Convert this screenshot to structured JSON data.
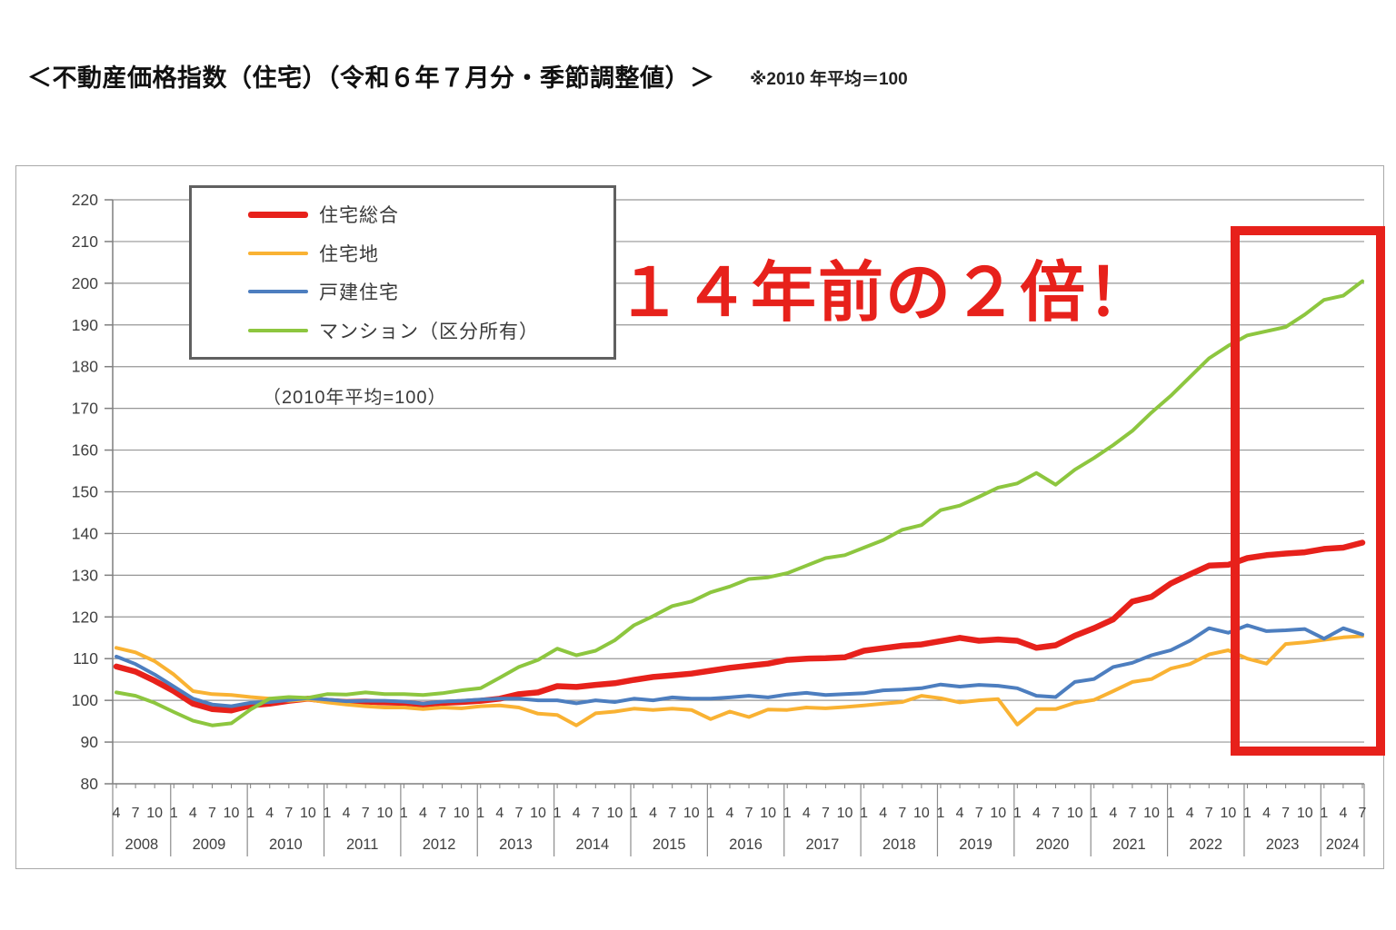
{
  "header": {
    "title": "＜不動産価格指数（住宅）（令和６年７月分・季節調整値）＞",
    "note": "※2010 年平均＝100"
  },
  "legend": {
    "items": [
      {
        "id": "composite",
        "label": "住宅総合",
        "color": "#e7211b",
        "thickness": 7
      },
      {
        "id": "land",
        "label": "住宅地",
        "color": "#f9b233",
        "thickness": 4
      },
      {
        "id": "detached",
        "label": "戸建住宅",
        "color": "#4d7ebf",
        "thickness": 4
      },
      {
        "id": "condo",
        "label": "マンション（区分所有）",
        "color": "#8dc63f",
        "thickness": 4
      }
    ],
    "subcaption": "（2010年平均=100）"
  },
  "annotation": {
    "text": "１４年前の２倍！",
    "color": "#e7211b"
  },
  "highlight_box": {
    "from": "2023-01",
    "to": "2024-07",
    "color": "#e7211b"
  },
  "chart_data": {
    "type": "line",
    "title": "不動産価格指数（住宅）（令和６年７月分・季節調整値）",
    "x_unit": "month",
    "x_start": "2008-04",
    "x_end": "2024-07",
    "ylim": [
      80,
      220
    ],
    "y_step": 10,
    "y_ticks": [
      80,
      90,
      100,
      110,
      120,
      130,
      140,
      150,
      160,
      170,
      180,
      190,
      200,
      210,
      220
    ],
    "x_year_labels": [
      "2008",
      "2009",
      "2010",
      "2011",
      "2012",
      "2013",
      "2014",
      "2015",
      "2016",
      "2017",
      "2018",
      "2019",
      "2020",
      "2021",
      "2022",
      "2023",
      "2024"
    ],
    "x_month_tick_pattern": {
      "2008": [
        4,
        7,
        10
      ],
      "default": [
        1,
        4,
        7,
        10
      ],
      "2024": [
        1,
        4,
        7
      ]
    },
    "grid": true,
    "legend_position": "top-left",
    "grid_color": "#969696",
    "axis_color": "#7f7f7f",
    "label_color": "#3f3f3f",
    "frame_color": "#a9a9a9",
    "background": "#ffffff",
    "quarters": [
      "2008-04",
      "2008-07",
      "2008-10",
      "2009-01",
      "2009-04",
      "2009-07",
      "2009-10",
      "2010-01",
      "2010-04",
      "2010-07",
      "2010-10",
      "2011-01",
      "2011-04",
      "2011-07",
      "2011-10",
      "2012-01",
      "2012-04",
      "2012-07",
      "2012-10",
      "2013-01",
      "2013-04",
      "2013-07",
      "2013-10",
      "2014-01",
      "2014-04",
      "2014-07",
      "2014-10",
      "2015-01",
      "2015-04",
      "2015-07",
      "2015-10",
      "2016-01",
      "2016-04",
      "2016-07",
      "2016-10",
      "2017-01",
      "2017-04",
      "2017-07",
      "2017-10",
      "2018-01",
      "2018-04",
      "2018-07",
      "2018-10",
      "2019-01",
      "2019-04",
      "2019-07",
      "2019-10",
      "2020-01",
      "2020-04",
      "2020-07",
      "2020-10",
      "2021-01",
      "2021-04",
      "2021-07",
      "2021-10",
      "2022-01",
      "2022-04",
      "2022-07",
      "2022-10",
      "2023-01",
      "2023-04",
      "2023-07",
      "2023-10",
      "2024-01",
      "2024-04",
      "2024-07"
    ],
    "series": [
      {
        "id": "composite",
        "name": "住宅総合",
        "color": "#e7211b",
        "width": 6.5,
        "values": [
          108.1,
          106.9,
          104.7,
          102.2,
          99.2,
          97.9,
          97.6,
          98.8,
          99.2,
          99.9,
          100.4,
          99.9,
          99.6,
          99.7,
          99.5,
          99.4,
          99.0,
          99.4,
          99.6,
          99.9,
          100.4,
          101.5,
          101.9,
          103.4,
          103.2,
          103.7,
          104.1,
          104.9,
          105.6,
          106.0,
          106.4,
          107.1,
          107.8,
          108.3,
          108.8,
          109.7,
          110.0,
          110.1,
          110.3,
          111.9,
          112.5,
          113.1,
          113.4,
          114.2,
          115.0,
          114.3,
          114.6,
          114.3,
          112.6,
          113.2,
          115.5,
          117.3,
          119.4,
          123.7,
          124.8,
          128.0,
          130.2,
          132.3,
          132.5,
          134.1,
          134.8,
          135.2,
          135.5,
          136.3,
          136.6,
          137.8
        ]
      },
      {
        "id": "land",
        "name": "住宅地",
        "color": "#f9b233",
        "width": 4,
        "values": [
          112.6,
          111.5,
          109.4,
          106.2,
          102.2,
          101.5,
          101.3,
          100.8,
          100.4,
          99.9,
          100.2,
          99.5,
          99.0,
          98.6,
          98.3,
          98.3,
          97.9,
          98.3,
          98.1,
          98.6,
          98.8,
          98.3,
          96.8,
          96.5,
          94.0,
          96.9,
          97.3,
          98.0,
          97.7,
          98.0,
          97.7,
          95.5,
          97.3,
          96.0,
          97.8,
          97.7,
          98.3,
          98.1,
          98.4,
          98.8,
          99.2,
          99.6,
          101.1,
          100.5,
          99.5,
          100.0,
          100.3,
          94.2,
          97.9,
          97.9,
          99.4,
          100.1,
          102.2,
          104.4,
          105.1,
          107.6,
          108.7,
          111.0,
          112.0,
          110.0,
          108.8,
          113.5,
          113.9,
          114.5,
          115.1,
          115.4
        ]
      },
      {
        "id": "detached",
        "name": "戸建住宅",
        "color": "#4d7ebf",
        "width": 4,
        "values": [
          110.5,
          108.7,
          106.2,
          103.3,
          100.4,
          99.0,
          98.6,
          99.4,
          99.6,
          100.1,
          100.5,
          100.2,
          99.8,
          99.9,
          99.9,
          99.7,
          99.2,
          99.7,
          99.9,
          100.2,
          100.4,
          100.4,
          100.0,
          100.0,
          99.3,
          100.0,
          99.6,
          100.4,
          100.0,
          100.7,
          100.4,
          100.4,
          100.7,
          101.1,
          100.7,
          101.4,
          101.8,
          101.3,
          101.5,
          101.7,
          102.4,
          102.6,
          102.9,
          103.8,
          103.3,
          103.7,
          103.5,
          102.9,
          101.1,
          100.8,
          104.4,
          105.1,
          108.0,
          109.0,
          110.8,
          112.0,
          114.3,
          117.3,
          116.2,
          118.0,
          116.6,
          116.8,
          117.1,
          114.8,
          117.3,
          115.8
        ]
      },
      {
        "id": "condo",
        "name": "マンション（区分所有）",
        "color": "#8dc63f",
        "width": 4,
        "values": [
          101.9,
          101.1,
          99.4,
          97.2,
          95.1,
          94.0,
          94.5,
          97.8,
          100.4,
          100.8,
          100.6,
          101.5,
          101.4,
          101.9,
          101.5,
          101.5,
          101.3,
          101.7,
          102.4,
          102.9,
          105.4,
          108.0,
          109.7,
          112.4,
          110.8,
          111.9,
          114.4,
          118.0,
          120.2,
          122.6,
          123.7,
          125.9,
          127.3,
          129.1,
          129.5,
          130.5,
          132.3,
          134.1,
          134.8,
          136.6,
          138.4,
          140.9,
          142.0,
          145.6,
          146.7,
          148.8,
          151.0,
          152.0,
          154.5,
          151.7,
          155.3,
          158.1,
          161.2,
          164.6,
          169.0,
          173.0,
          177.5,
          182.0,
          185.0,
          187.5,
          188.5,
          189.5,
          192.5,
          196.0,
          197.0,
          200.5
        ]
      }
    ]
  }
}
